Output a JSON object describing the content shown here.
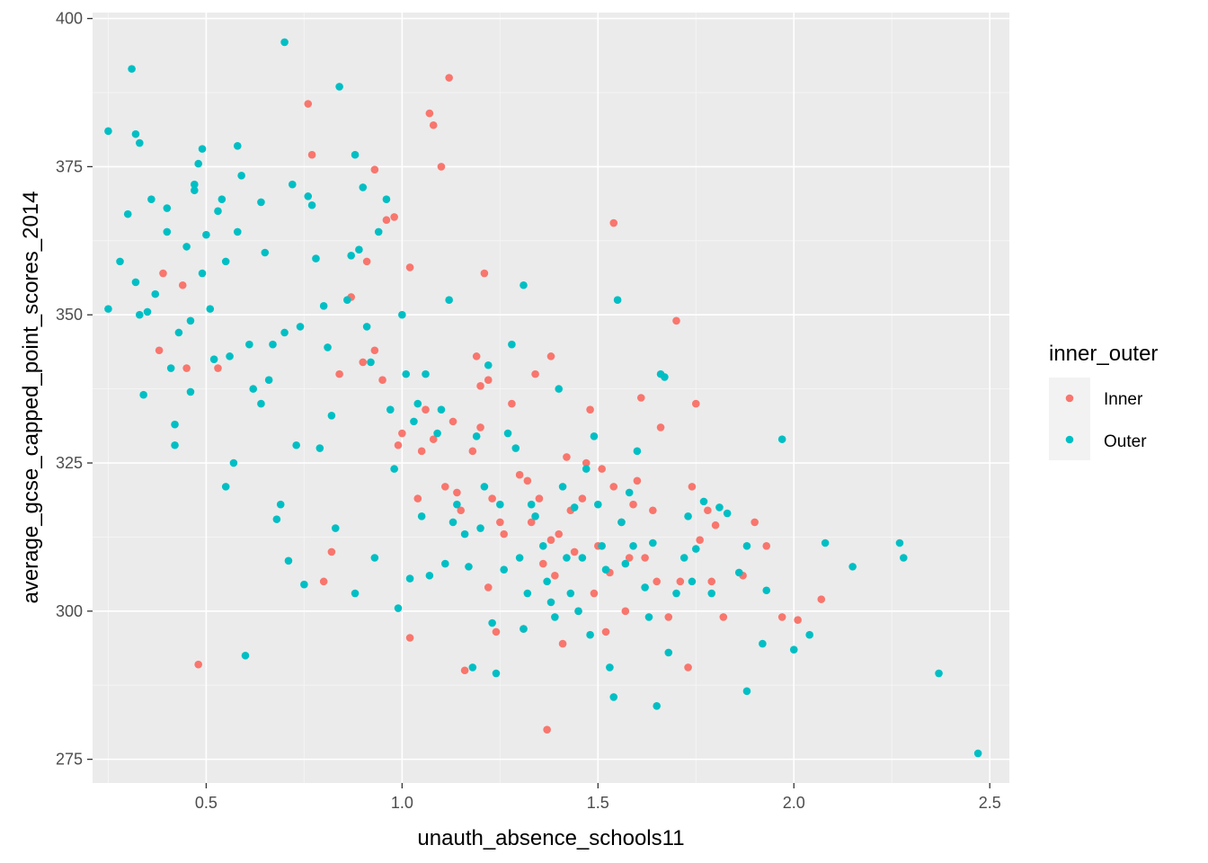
{
  "chart_data": {
    "type": "scatter",
    "xlabel": "unauth_absence_schools11",
    "ylabel": "average_gcse_capped_point_scores_2014",
    "xlim": [
      0.21,
      2.55
    ],
    "ylim": [
      271,
      401
    ],
    "x_ticks": [
      0.5,
      1.0,
      1.5,
      2.0,
      2.5
    ],
    "x_tick_labels": [
      "0.5",
      "1.0",
      "1.5",
      "2.0",
      "2.5"
    ],
    "y_ticks": [
      275,
      300,
      325,
      350,
      375,
      400
    ],
    "y_tick_labels": [
      "275",
      "300",
      "325",
      "350",
      "375",
      "400"
    ],
    "grid": true,
    "panel_background": "#ebebeb",
    "legend": {
      "title": "inner_outer",
      "placement": "right",
      "entries": [
        {
          "label": "Inner",
          "color": "#f8766d"
        },
        {
          "label": "Outer",
          "color": "#00bfc4"
        }
      ]
    },
    "series": [
      {
        "name": "Inner",
        "color": "#f8766d",
        "points": [
          [
            0.39,
            357
          ],
          [
            0.38,
            344
          ],
          [
            0.44,
            355
          ],
          [
            0.45,
            341
          ],
          [
            0.48,
            291
          ],
          [
            0.53,
            341
          ],
          [
            0.76,
            385.6
          ],
          [
            0.77,
            377
          ],
          [
            0.8,
            305
          ],
          [
            0.82,
            310
          ],
          [
            0.84,
            340
          ],
          [
            0.87,
            353
          ],
          [
            0.9,
            342
          ],
          [
            0.91,
            359
          ],
          [
            0.93,
            344
          ],
          [
            0.93,
            374.5
          ],
          [
            0.95,
            339
          ],
          [
            0.96,
            366
          ],
          [
            0.98,
            366.5
          ],
          [
            0.99,
            328
          ],
          [
            1.0,
            330
          ],
          [
            1.02,
            358
          ],
          [
            1.02,
            295.5
          ],
          [
            1.04,
            319
          ],
          [
            1.05,
            327
          ],
          [
            1.06,
            334
          ],
          [
            1.07,
            384
          ],
          [
            1.08,
            382
          ],
          [
            1.08,
            329
          ],
          [
            1.1,
            375
          ],
          [
            1.11,
            321
          ],
          [
            1.12,
            390
          ],
          [
            1.13,
            332
          ],
          [
            1.14,
            320
          ],
          [
            1.15,
            317
          ],
          [
            1.16,
            290
          ],
          [
            1.18,
            327
          ],
          [
            1.19,
            343
          ],
          [
            1.2,
            338
          ],
          [
            1.2,
            331
          ],
          [
            1.21,
            357
          ],
          [
            1.22,
            339
          ],
          [
            1.22,
            304
          ],
          [
            1.23,
            319
          ],
          [
            1.24,
            296.5
          ],
          [
            1.25,
            315
          ],
          [
            1.26,
            313
          ],
          [
            1.28,
            335
          ],
          [
            1.3,
            323
          ],
          [
            1.31,
            297
          ],
          [
            1.32,
            322
          ],
          [
            1.33,
            315
          ],
          [
            1.34,
            340
          ],
          [
            1.35,
            319
          ],
          [
            1.36,
            308
          ],
          [
            1.37,
            280
          ],
          [
            1.38,
            343
          ],
          [
            1.38,
            312
          ],
          [
            1.39,
            306
          ],
          [
            1.4,
            313
          ],
          [
            1.41,
            294.5
          ],
          [
            1.42,
            326
          ],
          [
            1.43,
            317
          ],
          [
            1.44,
            310
          ],
          [
            1.45,
            300
          ],
          [
            1.46,
            319
          ],
          [
            1.47,
            325
          ],
          [
            1.48,
            334
          ],
          [
            1.49,
            303
          ],
          [
            1.5,
            311
          ],
          [
            1.51,
            324
          ],
          [
            1.52,
            296.5
          ],
          [
            1.53,
            306.5
          ],
          [
            1.54,
            321
          ],
          [
            1.54,
            365.5
          ],
          [
            1.56,
            315
          ],
          [
            1.57,
            300
          ],
          [
            1.58,
            309
          ],
          [
            1.59,
            318
          ],
          [
            1.6,
            322
          ],
          [
            1.61,
            336
          ],
          [
            1.62,
            309
          ],
          [
            1.64,
            317
          ],
          [
            1.65,
            305
          ],
          [
            1.66,
            331
          ],
          [
            1.68,
            299
          ],
          [
            1.7,
            349
          ],
          [
            1.71,
            305
          ],
          [
            1.73,
            290.5
          ],
          [
            1.74,
            321
          ],
          [
            1.75,
            335
          ],
          [
            1.76,
            312
          ],
          [
            1.78,
            317
          ],
          [
            1.79,
            305
          ],
          [
            1.8,
            314.5
          ],
          [
            1.82,
            299
          ],
          [
            1.87,
            306
          ],
          [
            1.9,
            315
          ],
          [
            1.93,
            311
          ],
          [
            1.97,
            299
          ],
          [
            2.01,
            298.5
          ],
          [
            2.07,
            302
          ]
        ]
      },
      {
        "name": "Outer",
        "color": "#00bfc4",
        "points": [
          [
            0.25,
            381
          ],
          [
            0.25,
            351
          ],
          [
            0.28,
            359
          ],
          [
            0.3,
            367
          ],
          [
            0.31,
            391.5
          ],
          [
            0.32,
            380.5
          ],
          [
            0.32,
            355.5
          ],
          [
            0.33,
            350
          ],
          [
            0.33,
            379
          ],
          [
            0.34,
            336.5
          ],
          [
            0.35,
            350.5
          ],
          [
            0.36,
            369.5
          ],
          [
            0.37,
            353.5
          ],
          [
            0.4,
            364
          ],
          [
            0.4,
            368
          ],
          [
            0.41,
            341
          ],
          [
            0.42,
            331.5
          ],
          [
            0.42,
            328
          ],
          [
            0.43,
            347
          ],
          [
            0.45,
            361.5
          ],
          [
            0.46,
            337
          ],
          [
            0.46,
            349
          ],
          [
            0.47,
            371
          ],
          [
            0.47,
            372
          ],
          [
            0.48,
            375.5
          ],
          [
            0.49,
            378
          ],
          [
            0.49,
            357
          ],
          [
            0.5,
            363.5
          ],
          [
            0.51,
            351
          ],
          [
            0.52,
            342.5
          ],
          [
            0.53,
            367.5
          ],
          [
            0.54,
            369.5
          ],
          [
            0.55,
            359
          ],
          [
            0.55,
            321
          ],
          [
            0.56,
            343
          ],
          [
            0.57,
            325
          ],
          [
            0.58,
            378.5
          ],
          [
            0.58,
            364
          ],
          [
            0.59,
            373.5
          ],
          [
            0.6,
            292.5
          ],
          [
            0.61,
            345
          ],
          [
            0.62,
            337.5
          ],
          [
            0.64,
            369
          ],
          [
            0.64,
            335
          ],
          [
            0.65,
            360.5
          ],
          [
            0.66,
            339
          ],
          [
            0.67,
            345
          ],
          [
            0.68,
            315.5
          ],
          [
            0.69,
            318
          ],
          [
            0.7,
            347
          ],
          [
            0.7,
            396
          ],
          [
            0.71,
            308.5
          ],
          [
            0.72,
            372
          ],
          [
            0.73,
            328
          ],
          [
            0.74,
            348
          ],
          [
            0.75,
            304.5
          ],
          [
            0.76,
            370
          ],
          [
            0.77,
            368.5
          ],
          [
            0.78,
            359.5
          ],
          [
            0.79,
            327.5
          ],
          [
            0.8,
            351.5
          ],
          [
            0.81,
            344.5
          ],
          [
            0.82,
            333
          ],
          [
            0.83,
            314
          ],
          [
            0.84,
            388.5
          ],
          [
            0.86,
            352.5
          ],
          [
            0.87,
            360
          ],
          [
            0.88,
            303
          ],
          [
            0.88,
            377
          ],
          [
            0.89,
            361
          ],
          [
            0.9,
            371.5
          ],
          [
            0.91,
            348
          ],
          [
            0.92,
            342
          ],
          [
            0.93,
            309
          ],
          [
            0.94,
            364
          ],
          [
            0.96,
            369.5
          ],
          [
            0.97,
            334
          ],
          [
            0.98,
            324
          ],
          [
            0.99,
            300.5
          ],
          [
            1.0,
            350
          ],
          [
            1.01,
            340
          ],
          [
            1.02,
            305.5
          ],
          [
            1.03,
            332
          ],
          [
            1.04,
            335
          ],
          [
            1.05,
            316
          ],
          [
            1.06,
            340
          ],
          [
            1.07,
            306
          ],
          [
            1.09,
            330
          ],
          [
            1.1,
            334
          ],
          [
            1.11,
            308
          ],
          [
            1.12,
            352.5
          ],
          [
            1.13,
            315
          ],
          [
            1.14,
            318
          ],
          [
            1.16,
            313
          ],
          [
            1.17,
            307.5
          ],
          [
            1.18,
            290.5
          ],
          [
            1.19,
            329.5
          ],
          [
            1.2,
            314
          ],
          [
            1.21,
            321
          ],
          [
            1.22,
            341.5
          ],
          [
            1.23,
            298
          ],
          [
            1.24,
            289.5
          ],
          [
            1.25,
            318
          ],
          [
            1.26,
            307
          ],
          [
            1.27,
            330
          ],
          [
            1.28,
            345
          ],
          [
            1.29,
            327.5
          ],
          [
            1.3,
            309
          ],
          [
            1.31,
            297
          ],
          [
            1.31,
            355
          ],
          [
            1.32,
            303
          ],
          [
            1.33,
            318
          ],
          [
            1.34,
            316
          ],
          [
            1.36,
            311
          ],
          [
            1.37,
            305
          ],
          [
            1.38,
            301.5
          ],
          [
            1.39,
            299
          ],
          [
            1.4,
            337.5
          ],
          [
            1.41,
            321
          ],
          [
            1.42,
            309
          ],
          [
            1.43,
            303
          ],
          [
            1.44,
            317.5
          ],
          [
            1.45,
            300
          ],
          [
            1.46,
            309
          ],
          [
            1.47,
            324
          ],
          [
            1.48,
            296
          ],
          [
            1.49,
            329.5
          ],
          [
            1.5,
            318
          ],
          [
            1.51,
            311
          ],
          [
            1.52,
            307
          ],
          [
            1.53,
            290.5
          ],
          [
            1.54,
            285.5
          ],
          [
            1.55,
            352.5
          ],
          [
            1.56,
            315
          ],
          [
            1.57,
            308
          ],
          [
            1.58,
            320
          ],
          [
            1.59,
            311
          ],
          [
            1.6,
            327
          ],
          [
            1.62,
            304
          ],
          [
            1.63,
            299
          ],
          [
            1.64,
            311.5
          ],
          [
            1.65,
            284
          ],
          [
            1.66,
            340
          ],
          [
            1.67,
            339.5
          ],
          [
            1.68,
            293
          ],
          [
            1.7,
            303
          ],
          [
            1.72,
            309
          ],
          [
            1.73,
            316
          ],
          [
            1.74,
            305
          ],
          [
            1.75,
            310.5
          ],
          [
            1.77,
            318.5
          ],
          [
            1.79,
            303
          ],
          [
            1.81,
            317.5
          ],
          [
            1.83,
            316.5
          ],
          [
            1.86,
            306.5
          ],
          [
            1.88,
            311
          ],
          [
            1.88,
            286.5
          ],
          [
            1.92,
            294.5
          ],
          [
            1.93,
            303.5
          ],
          [
            1.97,
            329
          ],
          [
            2.0,
            293.5
          ],
          [
            2.04,
            296
          ],
          [
            2.08,
            311.5
          ],
          [
            2.15,
            307.5
          ],
          [
            2.27,
            311.5
          ],
          [
            2.28,
            309
          ],
          [
            2.37,
            289.5
          ],
          [
            2.47,
            276
          ]
        ]
      }
    ]
  }
}
